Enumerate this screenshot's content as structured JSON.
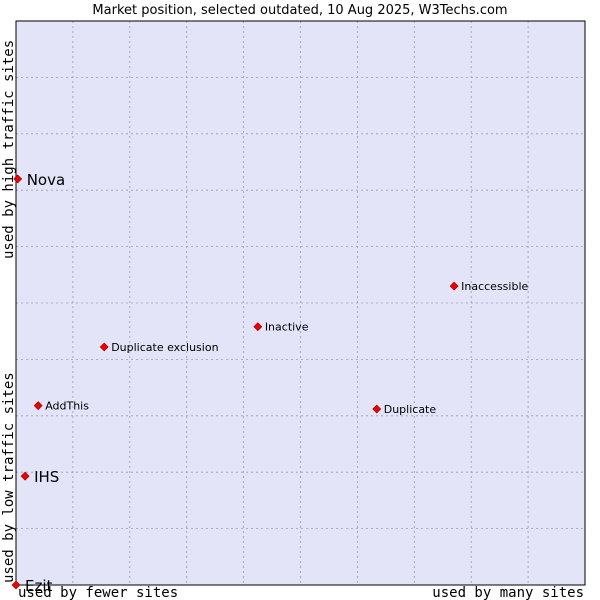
{
  "chart_data": {
    "type": "scatter",
    "title": "Market position, selected outdated, 10 Aug 2025, W3Techs.com",
    "xlabel_left": "used by fewer sites",
    "xlabel_right": "used by many sites",
    "ylabel_bottom": "used by low traffic sites",
    "ylabel_top": "used by high traffic sites",
    "xlim": [
      0,
      100
    ],
    "ylim": [
      0,
      100
    ],
    "grid": true,
    "colors": {
      "plot_bg": "#e3e4f8",
      "grid": "#9a9ab8",
      "frame": "#000000",
      "marker": "#ee0000",
      "marker_edge": "#990000"
    },
    "points": [
      {
        "name": "Nova",
        "x": 0.3,
        "y": 72.0,
        "label_size": "large"
      },
      {
        "name": "Inaccessible",
        "x": 77.0,
        "y": 53.0,
        "label_size": "small"
      },
      {
        "name": "Inactive",
        "x": 42.5,
        "y": 45.8,
        "label_size": "small"
      },
      {
        "name": "Duplicate exclusion",
        "x": 15.5,
        "y": 42.2,
        "label_size": "small"
      },
      {
        "name": "AddThis",
        "x": 3.9,
        "y": 31.8,
        "label_size": "small"
      },
      {
        "name": "Duplicate",
        "x": 63.4,
        "y": 31.2,
        "label_size": "small"
      },
      {
        "name": "IHS",
        "x": 1.6,
        "y": 19.3,
        "label_size": "large"
      },
      {
        "name": "Ezit",
        "x": 0.0,
        "y": 0.0,
        "label_size": "large"
      }
    ]
  }
}
